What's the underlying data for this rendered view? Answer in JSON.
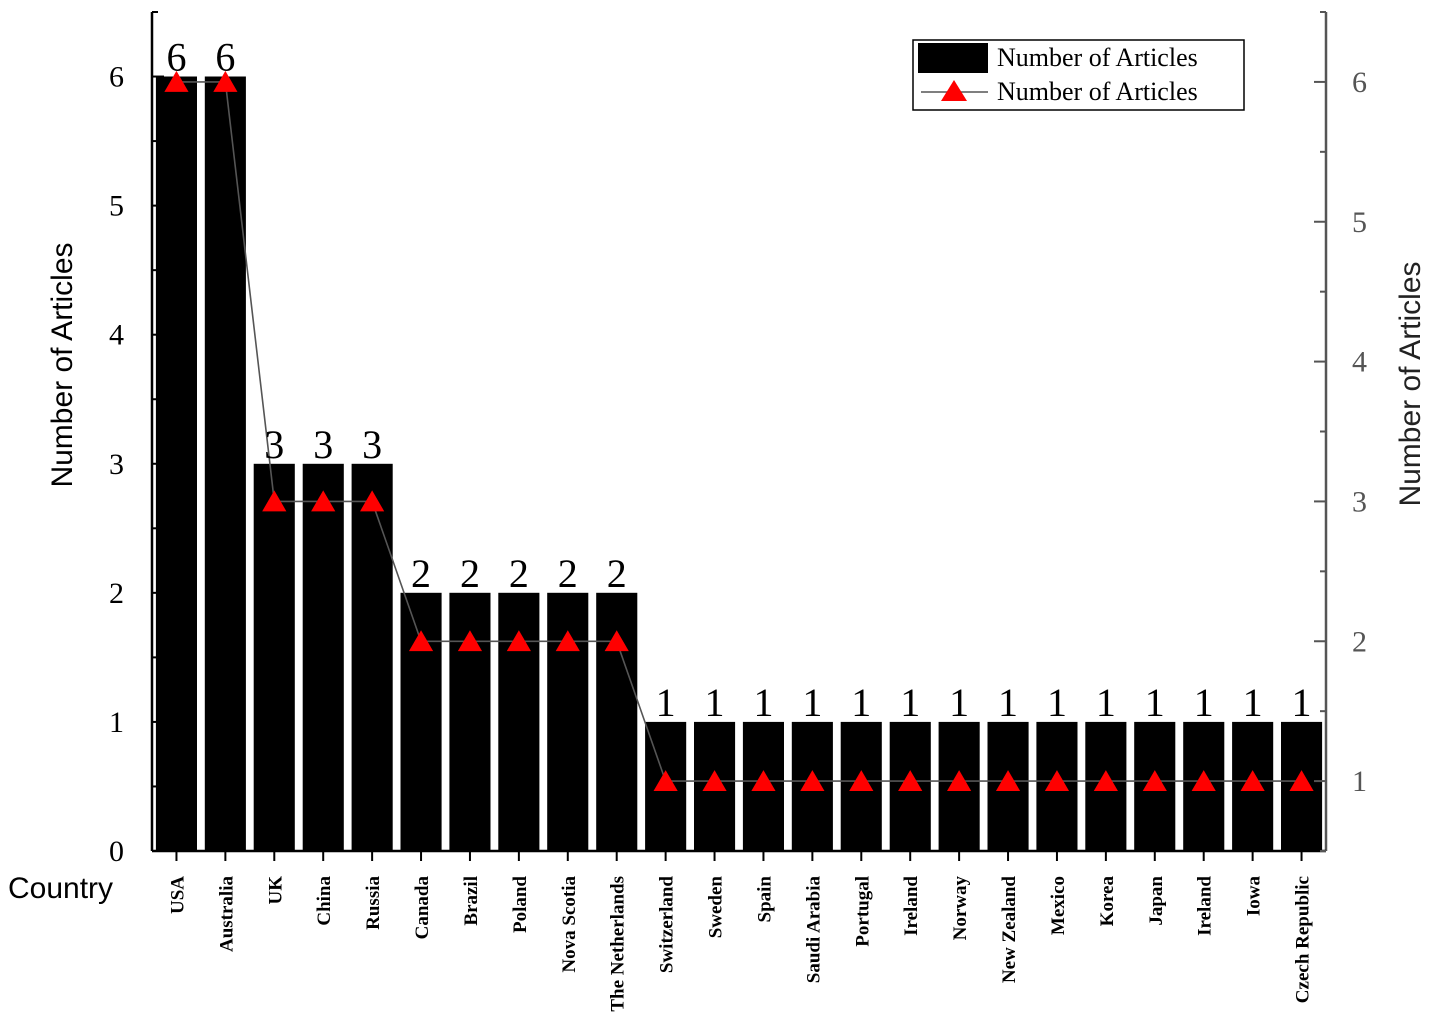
{
  "chart_data": {
    "type": "bar",
    "x_axis_name": "Country",
    "ylabel_left": "Number of Articles",
    "ylabel_right": "Number of Articles",
    "categories": [
      "USA",
      "Australia",
      "UK",
      "China",
      "Russia",
      "Canada",
      "Brazil",
      "Poland",
      "Nova Scotia",
      "The Netherlands",
      "Switzerland",
      "Sweden",
      "Spain",
      "Saudi Arabia",
      "Portugal",
      "Ireland",
      "Norway",
      "New Zealand",
      "Mexico",
      "Korea",
      "Japan",
      "Ireland",
      "Iowa",
      "Czech Republic"
    ],
    "series": [
      {
        "name": "Number of Articles",
        "kind": "bar",
        "axis": "left",
        "color": "#000000",
        "values": [
          6,
          6,
          3,
          3,
          3,
          2,
          2,
          2,
          2,
          2,
          1,
          1,
          1,
          1,
          1,
          1,
          1,
          1,
          1,
          1,
          1,
          1,
          1,
          1
        ]
      },
      {
        "name": "Number of Articles",
        "kind": "line",
        "axis": "right",
        "color": "#ff0000",
        "line_color": "#555555",
        "marker": "triangle",
        "values": [
          6,
          6,
          3,
          3,
          3,
          2,
          2,
          2,
          2,
          2,
          1,
          1,
          1,
          1,
          1,
          1,
          1,
          1,
          1,
          1,
          1,
          1,
          1,
          1
        ]
      }
    ],
    "data_labels": [
      "6",
      "6",
      "3",
      "3",
      "3",
      "2",
      "2",
      "2",
      "2",
      "2",
      "1",
      "1",
      "1",
      "1",
      "1",
      "1",
      "1",
      "1",
      "1",
      "1",
      "1",
      "1",
      "1",
      "1"
    ],
    "ylim_left": [
      0,
      6.5
    ],
    "yticks_left": [
      "0",
      "1",
      "2",
      "3",
      "4",
      "5",
      "6"
    ],
    "ylim_right": [
      0.5,
      6.5
    ],
    "yticks_right": [
      "1",
      "2",
      "3",
      "4",
      "5",
      "6"
    ],
    "grid": false,
    "legend_position": "top-right"
  }
}
